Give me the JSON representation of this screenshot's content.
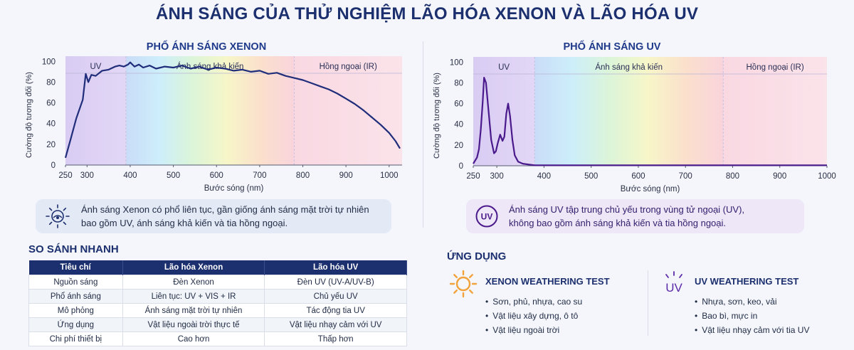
{
  "title": "ÁNH SÁNG CỦA THỬ NGHIỆM LÃO HÓA XENON VÀ LÃO HÓA UV",
  "chart_data": [
    {
      "type": "line",
      "title": "PHỔ ÁNH SÁNG XENON",
      "xlabel": "Bước sóng (nm)",
      "ylabel": "Cường độ tương đối (%)",
      "xlim": [
        250,
        1030
      ],
      "ylim": [
        0,
        105
      ],
      "x_ticks": [
        250,
        300,
        400,
        500,
        600,
        700,
        800,
        900,
        1000
      ],
      "y_ticks": [
        0,
        20,
        40,
        60,
        80,
        100
      ],
      "bands": [
        {
          "label": "UV",
          "from": 250,
          "to": 390
        },
        {
          "label": "Ánh sáng khả kiến",
          "from": 390,
          "to": 780
        },
        {
          "label": "Hồng ngoại (IR)",
          "from": 780,
          "to": 1030
        }
      ],
      "series": [
        {
          "color": "#1f2d7a",
          "x": [
            250,
            262,
            275,
            290,
            297,
            303,
            310,
            320,
            335,
            350,
            365,
            375,
            385,
            395,
            400,
            410,
            420,
            430,
            445,
            460,
            480,
            500,
            520,
            540,
            560,
            580,
            600,
            620,
            640,
            660,
            680,
            700,
            720,
            740,
            760,
            780,
            800,
            820,
            840,
            860,
            880,
            900,
            920,
            940,
            960,
            980,
            1000,
            1015,
            1025
          ],
          "y": [
            7,
            25,
            45,
            63,
            88,
            80,
            87,
            86,
            91,
            92,
            95,
            96,
            95,
            97,
            99,
            95,
            97,
            94,
            96,
            93,
            95,
            94,
            96,
            93,
            95,
            92,
            94,
            93,
            91,
            92,
            90,
            91,
            88,
            89,
            86,
            84,
            82,
            79,
            76,
            73,
            69,
            64,
            59,
            53,
            46,
            39,
            31,
            23,
            16
          ]
        }
      ]
    },
    {
      "type": "line",
      "title": "PHỔ ÁNH SÁNG UV",
      "xlabel": "Bước sóng (nm)",
      "ylabel": "Cường độ tương đối (%)",
      "xlim": [
        250,
        1000
      ],
      "ylim": [
        0,
        105
      ],
      "x_ticks": [
        250,
        300,
        400,
        500,
        600,
        700,
        800,
        900,
        1000
      ],
      "y_ticks": [
        0,
        20,
        40,
        60,
        80,
        100
      ],
      "bands": [
        {
          "label": "UV",
          "from": 250,
          "to": 380
        },
        {
          "label": "Ánh sáng khả kiến",
          "from": 380,
          "to": 780
        },
        {
          "label": "Hồng ngoại (IR)",
          "from": 780,
          "to": 1000
        }
      ],
      "series": [
        {
          "color": "#4a1a8c",
          "x": [
            250,
            258,
            262,
            266,
            270,
            273,
            277,
            282,
            288,
            294,
            298,
            302,
            307,
            312,
            316,
            320,
            324,
            328,
            333,
            338,
            345,
            355,
            370,
            380,
            400,
            600,
            800,
            1000
          ],
          "y": [
            2,
            8,
            16,
            35,
            62,
            85,
            80,
            55,
            25,
            12,
            14,
            22,
            30,
            24,
            28,
            50,
            60,
            48,
            25,
            10,
            4,
            2,
            1,
            0.5,
            0.5,
            0.5,
            0.5,
            0.5
          ]
        }
      ]
    }
  ],
  "notes": {
    "xenon": [
      "Ánh sáng Xenon có phổ liên tục, gần giống ánh sáng mặt trời tự nhiên",
      "bao gồm UV, ánh sáng khả kiến và tia hồng ngoại."
    ],
    "uv": [
      "Ánh sáng UV tập trung chủ yếu trong vùng tử ngoại (UV),",
      "không bao gồm ánh sáng khả kiến và tia hồng ngoại."
    ],
    "uv_badge": "UV"
  },
  "compare": {
    "title": "SO SÁNH NHANH",
    "headers": [
      "Tiêu chí",
      "Lão hóa Xenon",
      "Lão hóa UV"
    ],
    "rows": [
      [
        "Nguồn sáng",
        "Đèn Xenon",
        "Đèn UV (UV-A/UV-B)"
      ],
      [
        "Phổ ánh sáng",
        "Liên tục: UV + VIS + IR",
        "Chủ yếu UV"
      ],
      [
        "Mô phỏng",
        "Ánh sáng mặt trời tự nhiên",
        "Tác động tia UV"
      ],
      [
        "Ứng dụng",
        "Vật liệu ngoài trời thực tế",
        "Vật liệu nhạy cảm với UV"
      ],
      [
        "Chi phí thiết bị",
        "Cao hơn",
        "Thấp hơn"
      ]
    ]
  },
  "applications": {
    "title": "ỨNG DỤNG",
    "xenon": {
      "title": "XENON WEATHERING TEST",
      "items": [
        "Sơn, phủ, nhựa, cao su",
        "Vật liệu xây dựng, ô tô",
        "Vật liệu ngoài trời"
      ]
    },
    "uv": {
      "title": "UV WEATHERING TEST",
      "items": [
        "Nhựa, sơn, keo, vải",
        "Bao bì, mực in",
        "Vật liệu nhạy cảm với tia UV"
      ]
    },
    "uv_icon_label": "UV"
  },
  "colors": {
    "navy": "#1c2f6e",
    "xenon_line": "#1f2d7a",
    "uv_line": "#4a1a8c",
    "sun": "#f2a23a"
  }
}
